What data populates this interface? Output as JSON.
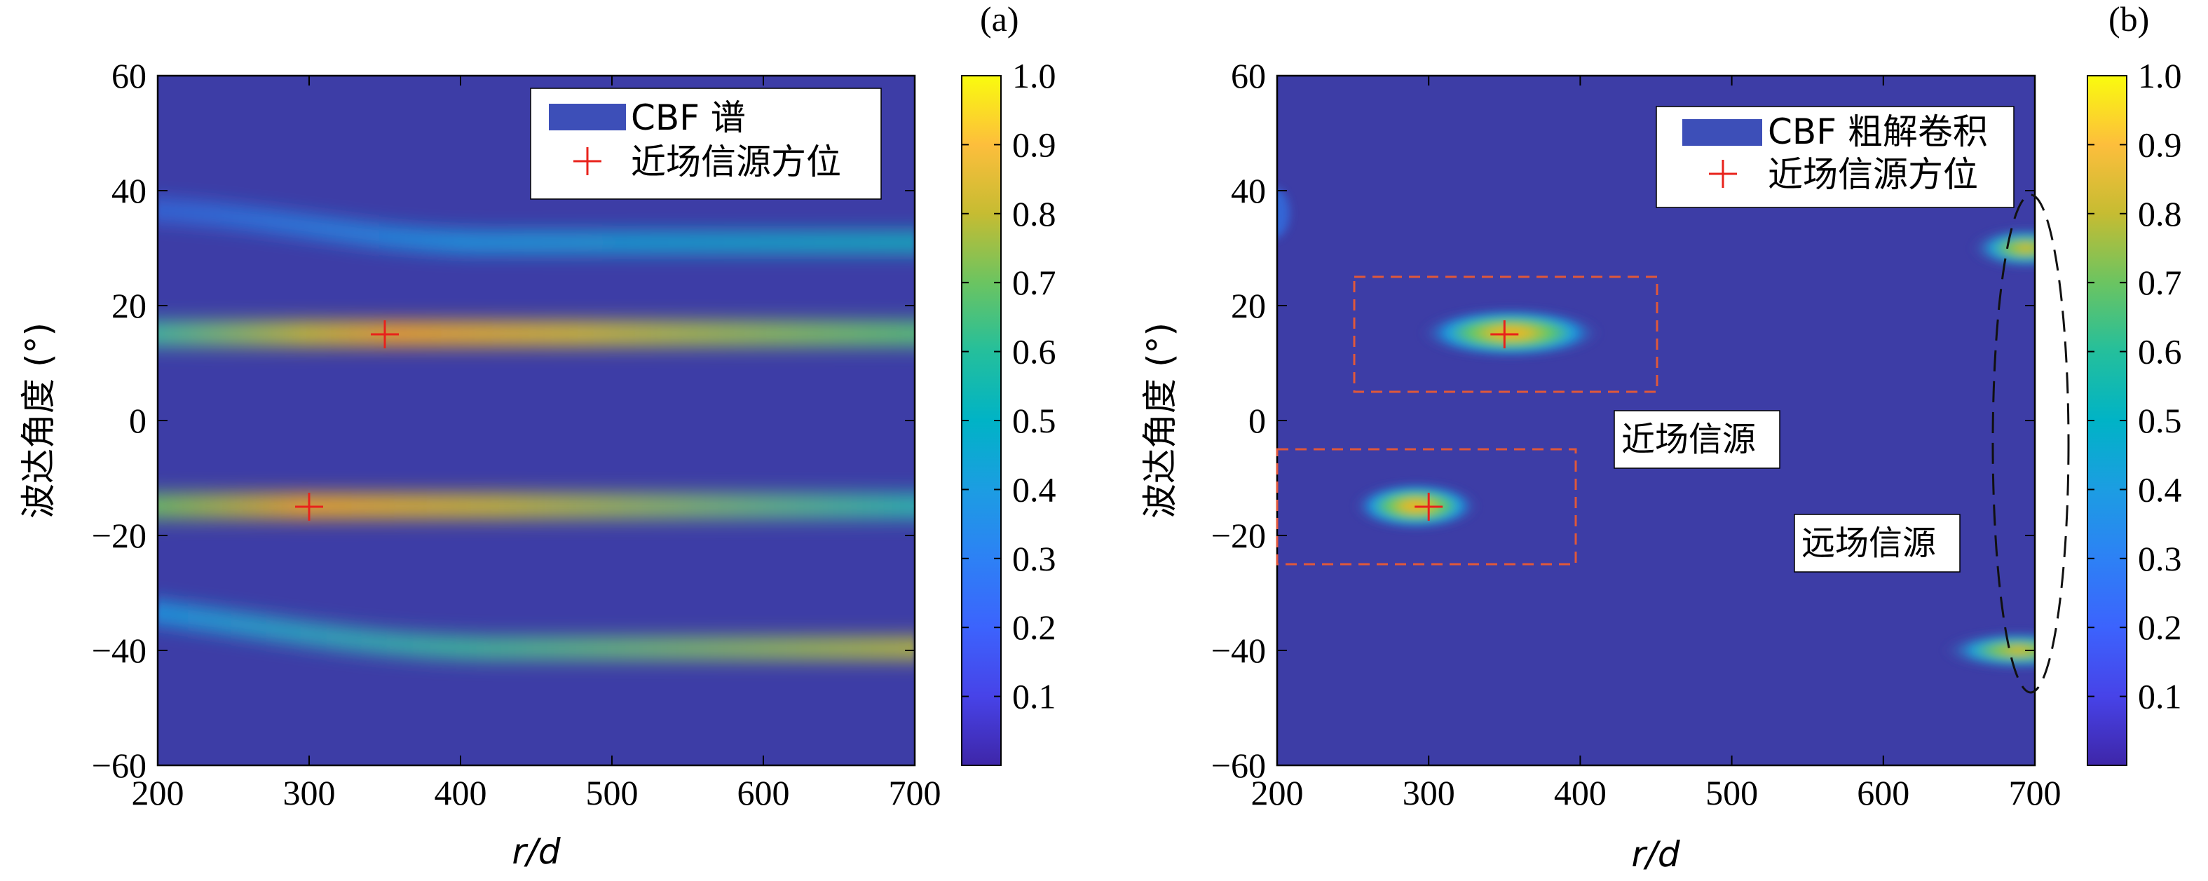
{
  "chart_data": [
    {
      "type": "heatmap",
      "panel_label": "(a)",
      "xlabel": "r/d",
      "ylabel": "波达角度 (°)",
      "xlim": [
        200,
        700
      ],
      "ylim": [
        -60,
        60
      ],
      "xticks": [
        200,
        300,
        400,
        500,
        600,
        700
      ],
      "yticks": [
        -60,
        -40,
        -20,
        0,
        20,
        40,
        60
      ],
      "colorbar": {
        "range": [
          0,
          1
        ],
        "ticks": [
          0.1,
          0.2,
          0.3,
          0.4,
          0.5,
          0.6,
          0.7,
          0.8,
          0.9,
          1.0
        ]
      },
      "legend": {
        "position": "top-right",
        "entries": [
          {
            "label": "CBF 谱",
            "marker": "patch",
            "color": "#3d4fb8"
          },
          {
            "label": "近场信源方位",
            "marker": "plus",
            "color": "#e8221b"
          }
        ]
      },
      "ridges": [
        {
          "angle_start": 35,
          "angle_end": 30,
          "peak_r": 700,
          "peak_value": 0.55
        },
        {
          "angle_start": 15,
          "angle_end": 15,
          "peak_r": 350,
          "peak_value": 1.0
        },
        {
          "angle_start": -15,
          "angle_end": -15,
          "peak_r": 300,
          "peak_value": 1.0
        },
        {
          "angle_start": -35,
          "angle_end": -40,
          "peak_r": 700,
          "peak_value": 0.85
        }
      ],
      "markers": [
        {
          "r": 350,
          "angle": 15
        },
        {
          "r": 300,
          "angle": -15
        }
      ]
    },
    {
      "type": "heatmap",
      "panel_label": "(b)",
      "xlabel": "r/d",
      "ylabel": "波达角度 (°)",
      "xlim": [
        200,
        700
      ],
      "ylim": [
        -60,
        60
      ],
      "xticks": [
        200,
        300,
        400,
        500,
        600,
        700
      ],
      "yticks": [
        -60,
        -40,
        -20,
        0,
        20,
        40,
        60
      ],
      "colorbar": {
        "range": [
          0,
          1
        ],
        "ticks": [
          0.1,
          0.2,
          0.3,
          0.4,
          0.5,
          0.6,
          0.7,
          0.8,
          0.9,
          1.0
        ]
      },
      "legend": {
        "position": "top-right",
        "entries": [
          {
            "label": "CBF 粗解卷积",
            "marker": "patch",
            "color": "#3d4fb8"
          },
          {
            "label": "近场信源方位",
            "marker": "plus",
            "color": "#e8221b"
          }
        ]
      },
      "blobs": [
        {
          "r": 350,
          "angle": 15,
          "peak_value": 1.0
        },
        {
          "r": 300,
          "angle": -15,
          "peak_value": 1.0
        },
        {
          "r": 700,
          "angle": 30,
          "peak_value": 0.85
        },
        {
          "r": 700,
          "angle": -40,
          "peak_value": 0.8
        },
        {
          "r": 200,
          "angle": 36,
          "peak_value": 0.3
        }
      ],
      "markers": [
        {
          "r": 350,
          "angle": 15
        },
        {
          "r": 300,
          "angle": -15
        }
      ],
      "annotations": [
        {
          "text": "近场信源",
          "r": 375,
          "angle": -3
        },
        {
          "text": "远场信源",
          "r": 590,
          "angle": -21
        }
      ],
      "near_field_boxes": [
        {
          "r_range": [
            250,
            450
          ],
          "angle_range": [
            5,
            25
          ]
        },
        {
          "r_range": [
            200,
            397
          ],
          "angle_range": [
            -25,
            -5
          ]
        }
      ],
      "far_field_ellipse": {
        "r_center": 697,
        "angle_center": -5,
        "r_halfwidth": 25,
        "angle_halfwidth": 43
      }
    }
  ]
}
